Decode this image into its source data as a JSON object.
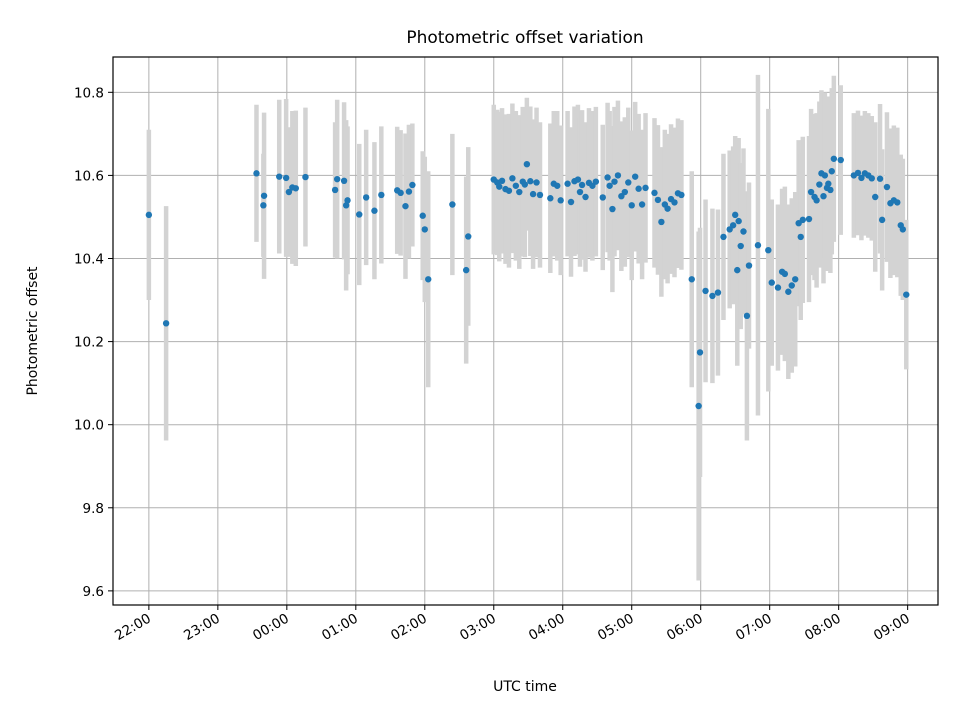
{
  "chart_data": {
    "type": "scatter",
    "title": "Photometric offset variation",
    "xlabel": "UTC time",
    "ylabel": "Photometric offset",
    "x_tick_labels": [
      "22:00",
      "23:00",
      "00:00",
      "01:00",
      "02:00",
      "03:00",
      "04:00",
      "05:00",
      "06:00",
      "07:00",
      "08:00",
      "09:00"
    ],
    "y_ticks": [
      9.6,
      9.8,
      10.0,
      10.2,
      10.4,
      10.6,
      10.8
    ],
    "y_tick_labels": [
      "9.6",
      "9.8",
      "10.0",
      "10.2",
      "10.4",
      "10.6",
      "10.8"
    ],
    "xlim_hours": [
      -2.52,
      9.44
    ],
    "ylim": [
      9.566,
      10.885
    ],
    "grid": true,
    "colors": {
      "point": "#1f77b4",
      "errorbar": "#d3d3d3",
      "grid": "#b0b0b0"
    },
    "series": [
      {
        "points": [
          [
            -2.0,
            10.505,
            0.205
          ],
          [
            -1.75,
            10.244,
            0.282
          ],
          [
            -0.44,
            10.605,
            0.165
          ],
          [
            -0.34,
            10.528,
            0.124
          ],
          [
            -0.33,
            10.551,
            0.2
          ],
          [
            -0.11,
            10.597,
            0.185
          ],
          [
            -0.01,
            10.594,
            0.19
          ],
          [
            0.03,
            10.56,
            0.156
          ],
          [
            0.08,
            10.571,
            0.184
          ],
          [
            0.13,
            10.569,
            0.187
          ],
          [
            0.27,
            10.596,
            0.167
          ],
          [
            0.7,
            10.565,
            0.163
          ],
          [
            0.73,
            10.591,
            0.191
          ],
          [
            0.83,
            10.587,
            0.189
          ],
          [
            0.86,
            10.528,
            0.205
          ],
          [
            0.88,
            10.54,
            0.178
          ],
          [
            1.05,
            10.506,
            0.17
          ],
          [
            1.15,
            10.547,
            0.163
          ],
          [
            1.27,
            10.515,
            0.165
          ],
          [
            1.37,
            10.553,
            0.165
          ],
          [
            1.6,
            10.564,
            0.153
          ],
          [
            1.65,
            10.558,
            0.151
          ],
          [
            1.72,
            10.526,
            0.175
          ],
          [
            1.77,
            10.561,
            0.161
          ],
          [
            1.82,
            10.577,
            0.148
          ],
          [
            1.97,
            10.503,
            0.155
          ],
          [
            2.0,
            10.47,
            0.175
          ],
          [
            2.05,
            10.35,
            0.26
          ],
          [
            2.4,
            10.53,
            0.17
          ],
          [
            2.6,
            10.372,
            0.225
          ],
          [
            2.63,
            10.453,
            0.215
          ],
          [
            3.0,
            10.59,
            0.18
          ],
          [
            3.05,
            10.583,
            0.175
          ],
          [
            3.08,
            10.573,
            0.18
          ],
          [
            3.12,
            10.587,
            0.175
          ],
          [
            3.17,
            10.567,
            0.18
          ],
          [
            3.22,
            10.563,
            0.185
          ],
          [
            3.27,
            10.593,
            0.18
          ],
          [
            3.32,
            10.575,
            0.18
          ],
          [
            3.37,
            10.56,
            0.185
          ],
          [
            3.42,
            10.585,
            0.18
          ],
          [
            3.45,
            10.578,
            0.175
          ],
          [
            3.48,
            10.627,
            0.16
          ],
          [
            3.53,
            10.586,
            0.18
          ],
          [
            3.57,
            10.555,
            0.18
          ],
          [
            3.62,
            10.583,
            0.18
          ],
          [
            3.67,
            10.553,
            0.175
          ],
          [
            3.82,
            10.545,
            0.18
          ],
          [
            3.87,
            10.58,
            0.175
          ],
          [
            3.92,
            10.575,
            0.18
          ],
          [
            3.97,
            10.54,
            0.18
          ],
          [
            4.07,
            10.58,
            0.175
          ],
          [
            4.12,
            10.536,
            0.18
          ],
          [
            4.17,
            10.586,
            0.18
          ],
          [
            4.22,
            10.59,
            0.18
          ],
          [
            4.25,
            10.56,
            0.18
          ],
          [
            4.28,
            10.577,
            0.18
          ],
          [
            4.33,
            10.548,
            0.18
          ],
          [
            4.38,
            10.582,
            0.18
          ],
          [
            4.43,
            10.575,
            0.18
          ],
          [
            4.48,
            10.585,
            0.18
          ],
          [
            4.58,
            10.547,
            0.175
          ],
          [
            4.65,
            10.595,
            0.18
          ],
          [
            4.68,
            10.575,
            0.18
          ],
          [
            4.72,
            10.519,
            0.2
          ],
          [
            4.75,
            10.585,
            0.18
          ],
          [
            4.8,
            10.6,
            0.18
          ],
          [
            4.85,
            10.55,
            0.18
          ],
          [
            4.9,
            10.56,
            0.18
          ],
          [
            4.95,
            10.583,
            0.18
          ],
          [
            5.0,
            10.528,
            0.18
          ],
          [
            5.05,
            10.597,
            0.18
          ],
          [
            5.1,
            10.568,
            0.18
          ],
          [
            5.15,
            10.53,
            0.18
          ],
          [
            5.2,
            10.57,
            0.18
          ],
          [
            5.33,
            10.558,
            0.18
          ],
          [
            5.38,
            10.541,
            0.18
          ],
          [
            5.43,
            10.488,
            0.18
          ],
          [
            5.48,
            10.53,
            0.18
          ],
          [
            5.52,
            10.52,
            0.18
          ],
          [
            5.57,
            10.543,
            0.18
          ],
          [
            5.62,
            10.535,
            0.18
          ],
          [
            5.67,
            10.557,
            0.18
          ],
          [
            5.72,
            10.553,
            0.18
          ],
          [
            5.87,
            10.35,
            0.26
          ],
          [
            5.97,
            10.045,
            0.42
          ],
          [
            5.99,
            10.174,
            0.3
          ],
          [
            6.07,
            10.322,
            0.22
          ],
          [
            6.17,
            10.31,
            0.21
          ],
          [
            6.25,
            10.318,
            0.2
          ],
          [
            6.33,
            10.452,
            0.2
          ],
          [
            6.42,
            10.47,
            0.19
          ],
          [
            6.47,
            10.48,
            0.19
          ],
          [
            6.5,
            10.505,
            0.19
          ],
          [
            6.53,
            10.372,
            0.23
          ],
          [
            6.55,
            10.49,
            0.2
          ],
          [
            6.58,
            10.43,
            0.2
          ],
          [
            6.62,
            10.465,
            0.2
          ],
          [
            6.67,
            10.262,
            0.3
          ],
          [
            6.7,
            10.383,
            0.2
          ],
          [
            6.83,
            10.432,
            0.41
          ],
          [
            6.98,
            10.42,
            0.34
          ],
          [
            7.03,
            10.342,
            0.2
          ],
          [
            7.12,
            10.33,
            0.2
          ],
          [
            7.18,
            10.368,
            0.2
          ],
          [
            7.22,
            10.363,
            0.21
          ],
          [
            7.27,
            10.32,
            0.21
          ],
          [
            7.32,
            10.335,
            0.21
          ],
          [
            7.37,
            10.35,
            0.21
          ],
          [
            7.42,
            10.485,
            0.2
          ],
          [
            7.45,
            10.452,
            0.2
          ],
          [
            7.48,
            10.493,
            0.2
          ],
          [
            7.57,
            10.495,
            0.2
          ],
          [
            7.6,
            10.56,
            0.2
          ],
          [
            7.65,
            10.548,
            0.2
          ],
          [
            7.68,
            10.54,
            0.21
          ],
          [
            7.72,
            10.578,
            0.2
          ],
          [
            7.75,
            10.605,
            0.2
          ],
          [
            7.78,
            10.55,
            0.21
          ],
          [
            7.8,
            10.6,
            0.2
          ],
          [
            7.83,
            10.57,
            0.2
          ],
          [
            7.85,
            10.58,
            0.21
          ],
          [
            7.88,
            10.565,
            0.2
          ],
          [
            7.9,
            10.61,
            0.2
          ],
          [
            7.93,
            10.64,
            0.2
          ],
          [
            8.03,
            10.637,
            0.18
          ],
          [
            8.22,
            10.6,
            0.15
          ],
          [
            8.28,
            10.606,
            0.15
          ],
          [
            8.33,
            10.594,
            0.15
          ],
          [
            8.38,
            10.605,
            0.15
          ],
          [
            8.43,
            10.6,
            0.15
          ],
          [
            8.48,
            10.593,
            0.15
          ],
          [
            8.53,
            10.548,
            0.18
          ],
          [
            8.6,
            10.592,
            0.18
          ],
          [
            8.63,
            10.493,
            0.17
          ],
          [
            8.7,
            10.572,
            0.18
          ],
          [
            8.75,
            10.533,
            0.18
          ],
          [
            8.8,
            10.54,
            0.18
          ],
          [
            8.85,
            10.535,
            0.18
          ],
          [
            8.9,
            10.48,
            0.17
          ],
          [
            8.93,
            10.47,
            0.17
          ],
          [
            8.98,
            10.313,
            0.18
          ]
        ]
      }
    ]
  }
}
